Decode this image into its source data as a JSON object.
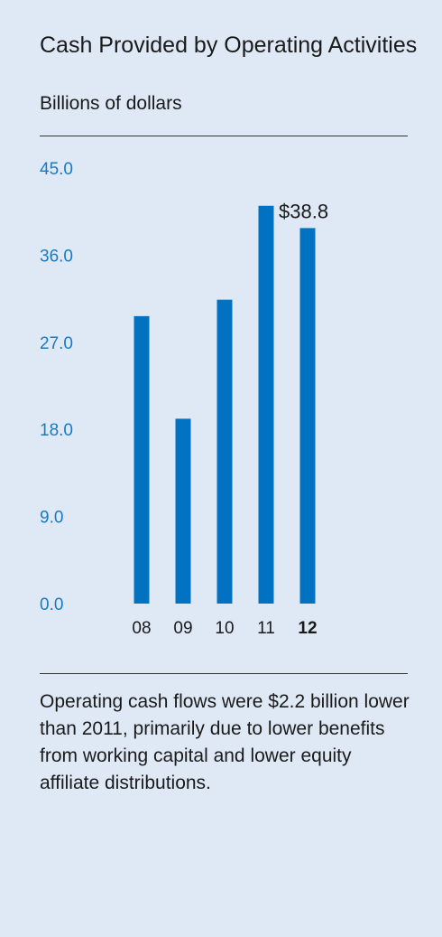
{
  "header": {
    "title": "Cash Provided by Operating Activities",
    "subtitle": "Billions of dollars"
  },
  "caption": "Operating cash flows were $2.2 billion lower than 2011, primarily due to lower benefits from working capital and lower equity affiliate distributions.",
  "colors": {
    "background": "#dfe9f6",
    "bar": "#0072c1",
    "tick_label": "#1a7abf",
    "text": "#1a1a1a"
  },
  "chart_data": {
    "type": "bar",
    "title": "Cash Provided by Operating Activities",
    "subtitle": "Billions of dollars",
    "categories": [
      "08",
      "09",
      "10",
      "11",
      "12"
    ],
    "highlight_category": "12",
    "values": [
      29.7,
      19.1,
      31.4,
      41.1,
      38.8
    ],
    "ylim": [
      0,
      45
    ],
    "yticks": [
      "0.0",
      "9.0",
      "18.0",
      "27.0",
      "36.0",
      "45.0"
    ],
    "yticks_values": [
      0,
      9,
      18,
      27,
      36,
      45
    ],
    "data_labels": [
      {
        "category": "12",
        "text": "$38.8"
      }
    ],
    "grid": false,
    "legend": "none"
  }
}
